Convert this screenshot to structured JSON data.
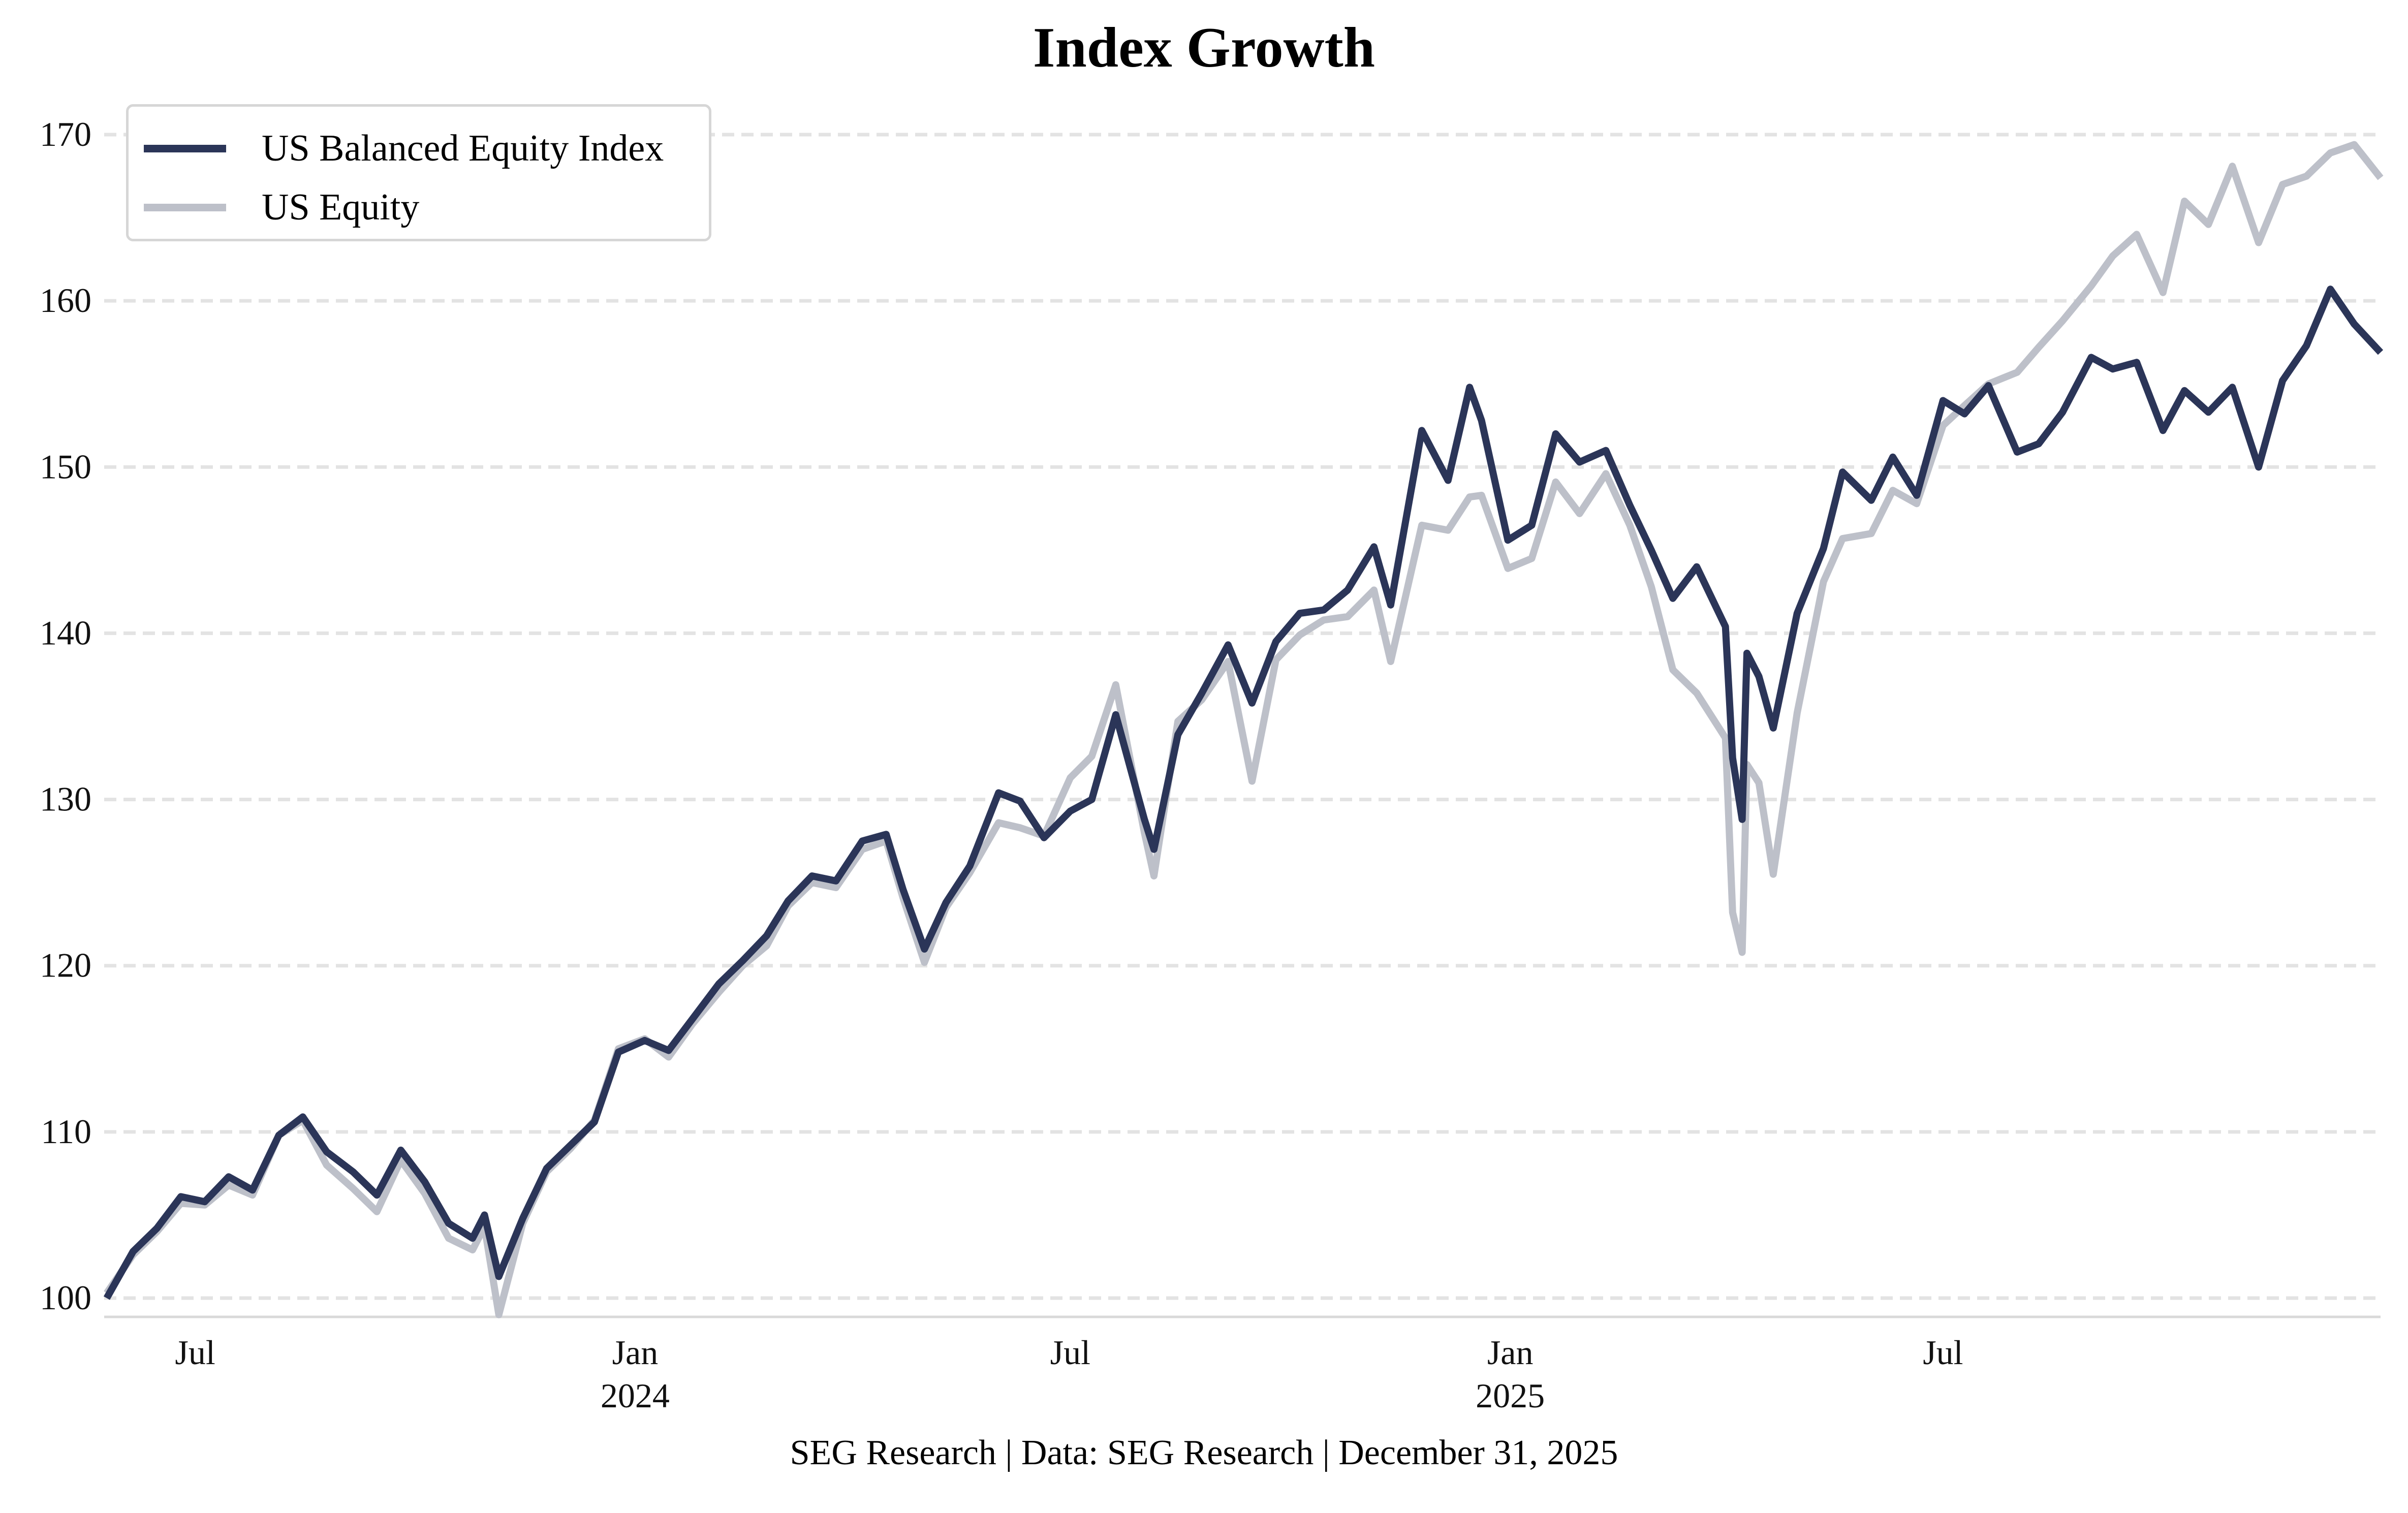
{
  "chart_data": {
    "type": "line",
    "title": "Index Growth",
    "xlabel": "",
    "ylabel": "",
    "ylim": [
      99,
      170.5
    ],
    "yticks": [
      100,
      110,
      120,
      130,
      140,
      150,
      160,
      170
    ],
    "ytick_labels": [
      "100",
      "110",
      "120",
      "130",
      "140",
      "150",
      "160",
      "170"
    ],
    "grid": "y-dashed",
    "legend_position": "top-left",
    "x_range": [
      "2023-05-25",
      "2025-12-31"
    ],
    "xticks": [
      {
        "date": "2023-07-01",
        "label": "Jul",
        "sublabel": ""
      },
      {
        "date": "2024-01-01",
        "label": "Jan",
        "sublabel": "2024"
      },
      {
        "date": "2024-07-01",
        "label": "Jul",
        "sublabel": ""
      },
      {
        "date": "2025-01-01",
        "label": "Jan",
        "sublabel": "2025"
      },
      {
        "date": "2025-07-01",
        "label": "Jul",
        "sublabel": ""
      }
    ],
    "x": [
      "2023-05-25",
      "2023-06-05",
      "2023-06-15",
      "2023-06-25",
      "2023-07-05",
      "2023-07-15",
      "2023-07-25",
      "2023-08-05",
      "2023-08-15",
      "2023-08-25",
      "2023-09-05",
      "2023-09-15",
      "2023-09-25",
      "2023-10-05",
      "2023-10-15",
      "2023-10-25",
      "2023-10-30",
      "2023-11-05",
      "2023-11-15",
      "2023-11-25",
      "2023-12-05",
      "2023-12-15",
      "2023-12-25",
      "2024-01-05",
      "2024-01-15",
      "2024-01-25",
      "2024-02-05",
      "2024-02-15",
      "2024-02-25",
      "2024-03-05",
      "2024-03-15",
      "2024-03-25",
      "2024-04-05",
      "2024-04-15",
      "2024-04-22",
      "2024-05-01",
      "2024-05-10",
      "2024-05-20",
      "2024-06-01",
      "2024-06-10",
      "2024-06-20",
      "2024-07-01",
      "2024-07-10",
      "2024-07-20",
      "2024-08-01",
      "2024-08-05",
      "2024-08-15",
      "2024-08-25",
      "2024-09-05",
      "2024-09-15",
      "2024-09-25",
      "2024-10-05",
      "2024-10-15",
      "2024-10-25",
      "2024-11-05",
      "2024-11-12",
      "2024-11-25",
      "2024-12-06",
      "2024-12-15",
      "2024-12-20",
      "2024-12-31",
      "2025-01-10",
      "2025-01-20",
      "2025-01-30",
      "2025-02-10",
      "2025-02-20",
      "2025-03-01",
      "2025-03-10",
      "2025-03-20",
      "2025-04-01",
      "2025-04-04",
      "2025-04-08",
      "2025-04-10",
      "2025-04-15",
      "2025-04-21",
      "2025-05-01",
      "2025-05-12",
      "2025-05-20",
      "2025-06-01",
      "2025-06-10",
      "2025-06-20",
      "2025-07-01",
      "2025-07-10",
      "2025-07-20",
      "2025-08-01",
      "2025-08-10",
      "2025-08-20",
      "2025-09-01",
      "2025-09-10",
      "2025-09-20",
      "2025-10-01",
      "2025-10-10",
      "2025-10-20",
      "2025-10-30",
      "2025-11-10",
      "2025-11-20",
      "2025-11-30",
      "2025-12-10",
      "2025-12-20",
      "2025-12-31"
    ],
    "series": [
      {
        "name": "US Balanced Equity Index",
        "color": "#2b3558",
        "values": [
          100.0,
          102.8,
          104.2,
          106.1,
          105.8,
          107.3,
          106.5,
          109.8,
          110.9,
          108.8,
          107.6,
          106.2,
          108.9,
          107.0,
          104.5,
          103.6,
          105.0,
          101.3,
          104.8,
          107.8,
          109.2,
          110.6,
          114.8,
          115.5,
          114.9,
          116.8,
          118.9,
          120.3,
          121.8,
          123.9,
          125.4,
          125.1,
          127.5,
          127.9,
          124.6,
          121.0,
          123.8,
          126.0,
          130.4,
          129.9,
          127.7,
          129.3,
          130.0,
          135.1,
          128.8,
          127.0,
          133.9,
          136.4,
          139.3,
          135.8,
          139.5,
          141.2,
          141.4,
          142.6,
          145.2,
          141.7,
          152.2,
          149.2,
          154.8,
          152.8,
          145.6,
          146.5,
          152.0,
          150.3,
          151.0,
          147.7,
          145.0,
          142.1,
          144.0,
          140.4,
          132.5,
          128.8,
          138.8,
          137.4,
          134.3,
          141.2,
          145.1,
          149.7,
          148.0,
          150.6,
          148.3,
          154.0,
          153.2,
          154.9,
          150.9,
          151.4,
          153.3,
          156.6,
          155.9,
          156.3,
          152.2,
          154.6,
          153.3,
          154.8,
          150.0,
          155.2,
          157.3,
          160.7,
          158.6,
          156.9
        ]
      },
      {
        "name": "US Equity",
        "color": "#bdc0c9",
        "values": [
          100.3,
          102.6,
          104.0,
          105.7,
          105.6,
          106.8,
          106.2,
          109.8,
          110.7,
          108.0,
          106.6,
          105.2,
          108.3,
          106.3,
          103.6,
          102.9,
          104.3,
          99.0,
          104.5,
          107.6,
          109.0,
          110.7,
          115.0,
          115.6,
          114.5,
          116.5,
          118.4,
          120.0,
          121.2,
          123.6,
          125.0,
          124.7,
          127.0,
          127.5,
          124.1,
          120.2,
          123.5,
          125.6,
          128.6,
          128.3,
          127.8,
          131.3,
          132.6,
          136.9,
          128.0,
          125.4,
          134.7,
          136.0,
          138.3,
          131.1,
          138.4,
          139.9,
          140.8,
          141.0,
          142.6,
          138.3,
          146.5,
          146.2,
          148.2,
          148.3,
          143.9,
          144.5,
          149.1,
          147.2,
          149.6,
          146.5,
          142.8,
          137.8,
          136.4,
          133.7,
          123.2,
          120.8,
          132.1,
          131.0,
          125.5,
          135.2,
          143.1,
          145.7,
          146.0,
          148.6,
          147.8,
          152.5,
          153.7,
          155.0,
          155.7,
          157.2,
          158.8,
          160.9,
          162.7,
          164.0,
          160.5,
          166.0,
          164.6,
          168.1,
          163.5,
          167.0,
          167.5,
          168.9,
          169.4,
          167.4
        ]
      }
    ]
  },
  "legend": {
    "items": [
      {
        "label": "US Balanced Equity Index",
        "color": "#2b3558"
      },
      {
        "label": "US Equity",
        "color": "#bdc0c9"
      }
    ]
  },
  "footer": {
    "text": "SEG Research | Data: SEG Research | December 31, 2025"
  }
}
